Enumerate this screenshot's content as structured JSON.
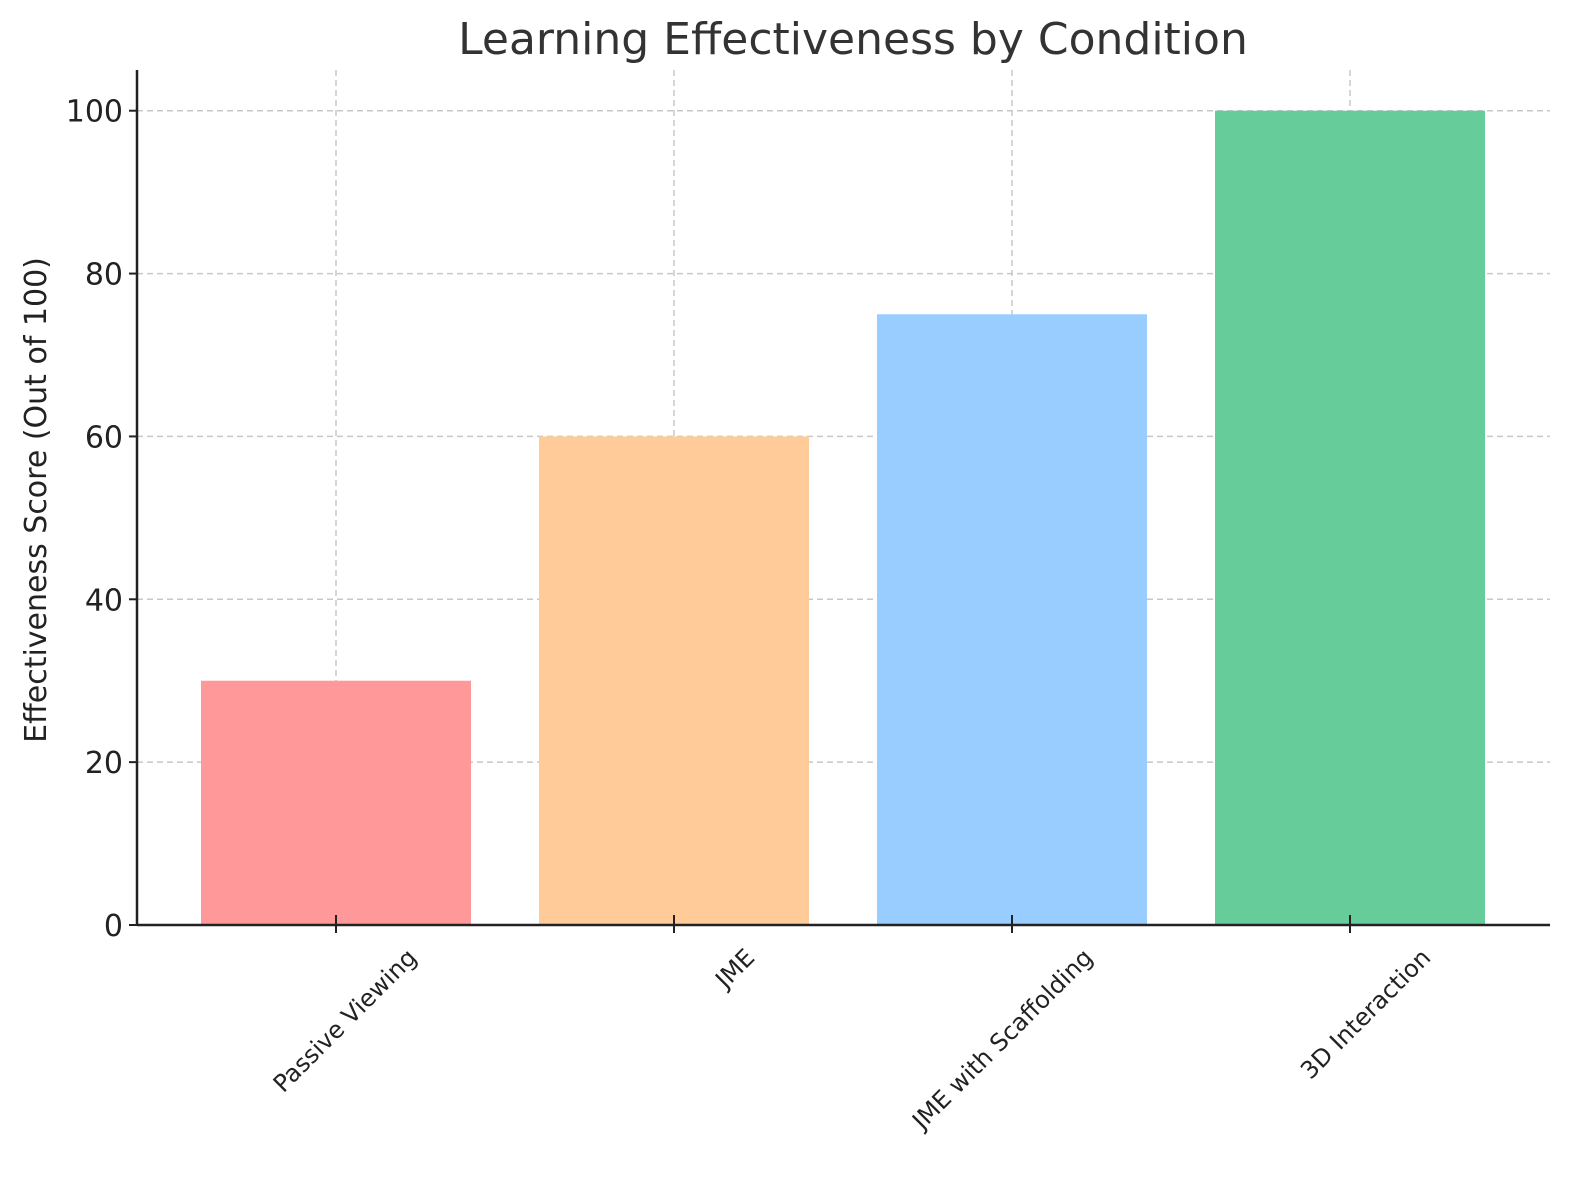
{
  "chart_data": {
    "type": "bar",
    "title": "Learning Effectiveness by Condition",
    "xlabel": "",
    "ylabel": "Effectiveness Score (Out of 100)",
    "categories": [
      "Passive Viewing",
      "JME",
      "JME with Scaffolding",
      "3D Interaction"
    ],
    "values": [
      30,
      60,
      75,
      100
    ],
    "colors": [
      "#ff9999",
      "#ffcc99",
      "#99ccff",
      "#66cc99"
    ],
    "ylim": [
      0,
      105
    ],
    "yticks": [
      0,
      20,
      40,
      60,
      80,
      100
    ],
    "grid": true,
    "legend": "none"
  }
}
